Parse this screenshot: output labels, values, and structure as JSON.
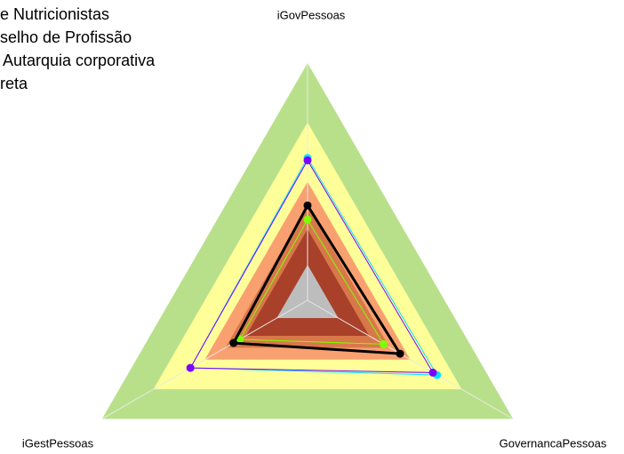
{
  "chart_data": {
    "type": "radar",
    "title_lines": [
      "e Nutricionistas",
      "selho de Profissão",
      "Autarquia corporativa",
      "reta"
    ],
    "axes": [
      "iGovPessoas",
      "GovernancaPessoas",
      "iGestPessoas"
    ],
    "rlim": [
      0,
      1
    ],
    "bands": [
      {
        "value": 1,
        "color": "#b8e08a"
      },
      {
        "value": 0.75,
        "color": "#ffff99"
      },
      {
        "value": 0.5,
        "color": "#f9a070"
      },
      {
        "value": 0.4,
        "color": "#d8784a"
      },
      {
        "value": 0.3,
        "color": "#a8402a"
      },
      {
        "value": 0.15,
        "color": "#bdbdbd"
      }
    ],
    "series": [
      {
        "color": "#00e5ff",
        "values": [
          0.6,
          0.63,
          0.57
        ],
        "width": 1
      },
      {
        "color": "#8000ff",
        "values": [
          0.59,
          0.61,
          0.57
        ],
        "width": 1
      },
      {
        "color": "#7fff00",
        "values": [
          0.34,
          0.37,
          0.33
        ],
        "width": 1
      },
      {
        "color": "#000000",
        "values": [
          0.4,
          0.45,
          0.36
        ],
        "width": 3
      }
    ]
  }
}
